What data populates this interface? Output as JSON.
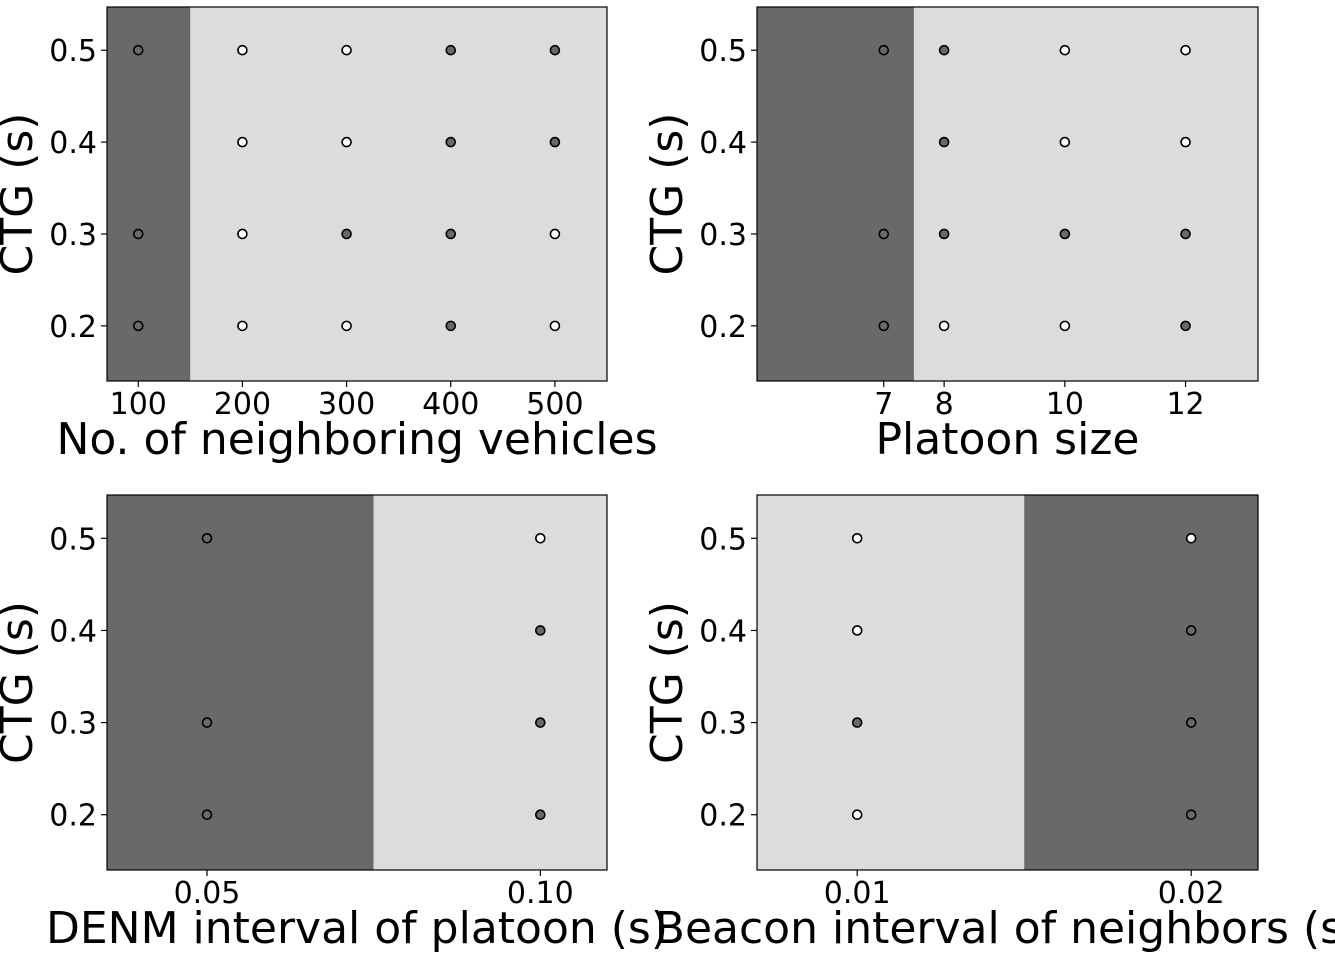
{
  "chart_data": [
    {
      "type": "scatter",
      "title": "",
      "xlabel": "No. of neighboring vehicles",
      "ylabel": "CTG (s)",
      "xlim": [
        70,
        550
      ],
      "ylim": [
        0.14,
        0.547
      ],
      "xticks": [
        100,
        200,
        300,
        400,
        500
      ],
      "xtick_labels": [
        "100",
        "200",
        "300",
        "400",
        "500"
      ],
      "yticks": [
        0.2,
        0.3,
        0.4,
        0.5
      ],
      "ytick_labels": [
        "0.2",
        "0.3",
        "0.4",
        "0.5"
      ],
      "regions": [
        {
          "x0": 70,
          "x1": 150,
          "shade": "dark"
        },
        {
          "x0": 150,
          "x1": 550,
          "shade": "light"
        }
      ],
      "points": [
        {
          "x": 100,
          "y": 0.5,
          "shade": "dark"
        },
        {
          "x": 100,
          "y": 0.3,
          "shade": "dark"
        },
        {
          "x": 100,
          "y": 0.2,
          "shade": "dark"
        },
        {
          "x": 200,
          "y": 0.5,
          "shade": "light"
        },
        {
          "x": 200,
          "y": 0.4,
          "shade": "light"
        },
        {
          "x": 200,
          "y": 0.3,
          "shade": "light"
        },
        {
          "x": 200,
          "y": 0.2,
          "shade": "light"
        },
        {
          "x": 300,
          "y": 0.5,
          "shade": "light"
        },
        {
          "x": 300,
          "y": 0.4,
          "shade": "light"
        },
        {
          "x": 300,
          "y": 0.3,
          "shade": "dark"
        },
        {
          "x": 300,
          "y": 0.2,
          "shade": "light"
        },
        {
          "x": 400,
          "y": 0.5,
          "shade": "dark"
        },
        {
          "x": 400,
          "y": 0.4,
          "shade": "dark"
        },
        {
          "x": 400,
          "y": 0.3,
          "shade": "dark"
        },
        {
          "x": 400,
          "y": 0.2,
          "shade": "dark"
        },
        {
          "x": 500,
          "y": 0.5,
          "shade": "dark"
        },
        {
          "x": 500,
          "y": 0.4,
          "shade": "dark"
        },
        {
          "x": 500,
          "y": 0.3,
          "shade": "light"
        },
        {
          "x": 500,
          "y": 0.2,
          "shade": "light"
        }
      ]
    },
    {
      "type": "scatter",
      "title": "",
      "xlabel": "Platoon size",
      "ylabel": "CTG (s)",
      "xlim": [
        4.9,
        13.2
      ],
      "ylim": [
        0.14,
        0.547
      ],
      "xticks": [
        7,
        8,
        10,
        12
      ],
      "xtick_labels": [
        "7",
        "8",
        "10",
        "12"
      ],
      "yticks": [
        0.2,
        0.3,
        0.4,
        0.5
      ],
      "ytick_labels": [
        "0.2",
        "0.3",
        "0.4",
        "0.5"
      ],
      "regions": [
        {
          "x0": 4.9,
          "x1": 7.5,
          "shade": "dark"
        },
        {
          "x0": 7.5,
          "x1": 13.2,
          "shade": "light"
        }
      ],
      "points": [
        {
          "x": 7,
          "y": 0.5,
          "shade": "dark"
        },
        {
          "x": 7,
          "y": 0.3,
          "shade": "dark"
        },
        {
          "x": 7,
          "y": 0.2,
          "shade": "dark"
        },
        {
          "x": 8,
          "y": 0.5,
          "shade": "dark"
        },
        {
          "x": 8,
          "y": 0.4,
          "shade": "dark"
        },
        {
          "x": 8,
          "y": 0.3,
          "shade": "dark"
        },
        {
          "x": 8,
          "y": 0.2,
          "shade": "light"
        },
        {
          "x": 10,
          "y": 0.5,
          "shade": "light"
        },
        {
          "x": 10,
          "y": 0.4,
          "shade": "light"
        },
        {
          "x": 10,
          "y": 0.3,
          "shade": "dark"
        },
        {
          "x": 10,
          "y": 0.2,
          "shade": "light"
        },
        {
          "x": 12,
          "y": 0.5,
          "shade": "light"
        },
        {
          "x": 12,
          "y": 0.4,
          "shade": "light"
        },
        {
          "x": 12,
          "y": 0.3,
          "shade": "dark"
        },
        {
          "x": 12,
          "y": 0.2,
          "shade": "dark"
        }
      ]
    },
    {
      "type": "scatter",
      "title": "",
      "xlabel": "DENM interval of platoon (s)",
      "ylabel": "CTG (s)",
      "xlim": [
        0.035,
        0.11
      ],
      "ylim": [
        0.14,
        0.547
      ],
      "xticks": [
        0.05,
        0.1
      ],
      "xtick_labels": [
        "0.05",
        "0.10"
      ],
      "yticks": [
        0.2,
        0.3,
        0.4,
        0.5
      ],
      "ytick_labels": [
        "0.2",
        "0.3",
        "0.4",
        "0.5"
      ],
      "regions": [
        {
          "x0": 0.035,
          "x1": 0.075,
          "shade": "dark"
        },
        {
          "x0": 0.075,
          "x1": 0.11,
          "shade": "light"
        }
      ],
      "points": [
        {
          "x": 0.05,
          "y": 0.5,
          "shade": "dark"
        },
        {
          "x": 0.05,
          "y": 0.3,
          "shade": "dark"
        },
        {
          "x": 0.05,
          "y": 0.2,
          "shade": "dark"
        },
        {
          "x": 0.1,
          "y": 0.5,
          "shade": "light"
        },
        {
          "x": 0.1,
          "y": 0.4,
          "shade": "dark"
        },
        {
          "x": 0.1,
          "y": 0.3,
          "shade": "dark"
        },
        {
          "x": 0.1,
          "y": 0.2,
          "shade": "dark"
        }
      ]
    },
    {
      "type": "scatter",
      "title": "",
      "xlabel": "Beacon interval of neighbors (s)",
      "ylabel": "CTG (s)",
      "xlim": [
        0.007,
        0.022
      ],
      "ylim": [
        0.14,
        0.547
      ],
      "xticks": [
        0.01,
        0.02
      ],
      "xtick_labels": [
        "0.01",
        "0.02"
      ],
      "yticks": [
        0.2,
        0.3,
        0.4,
        0.5
      ],
      "ytick_labels": [
        "0.2",
        "0.3",
        "0.4",
        "0.5"
      ],
      "regions": [
        {
          "x0": 0.007,
          "x1": 0.015,
          "shade": "light"
        },
        {
          "x0": 0.015,
          "x1": 0.022,
          "shade": "dark"
        }
      ],
      "points": [
        {
          "x": 0.01,
          "y": 0.5,
          "shade": "light"
        },
        {
          "x": 0.01,
          "y": 0.4,
          "shade": "light"
        },
        {
          "x": 0.01,
          "y": 0.3,
          "shade": "dark"
        },
        {
          "x": 0.01,
          "y": 0.2,
          "shade": "light"
        },
        {
          "x": 0.02,
          "y": 0.5,
          "shade": "light"
        },
        {
          "x": 0.02,
          "y": 0.4,
          "shade": "dark"
        },
        {
          "x": 0.02,
          "y": 0.3,
          "shade": "dark"
        },
        {
          "x": 0.02,
          "y": 0.2,
          "shade": "dark"
        }
      ]
    }
  ],
  "colors": {
    "dark_region": "#696969",
    "light_region": "#dcdcdc",
    "dark_point": "#696969",
    "light_point": "#ffffff",
    "point_edge": "#000000"
  }
}
